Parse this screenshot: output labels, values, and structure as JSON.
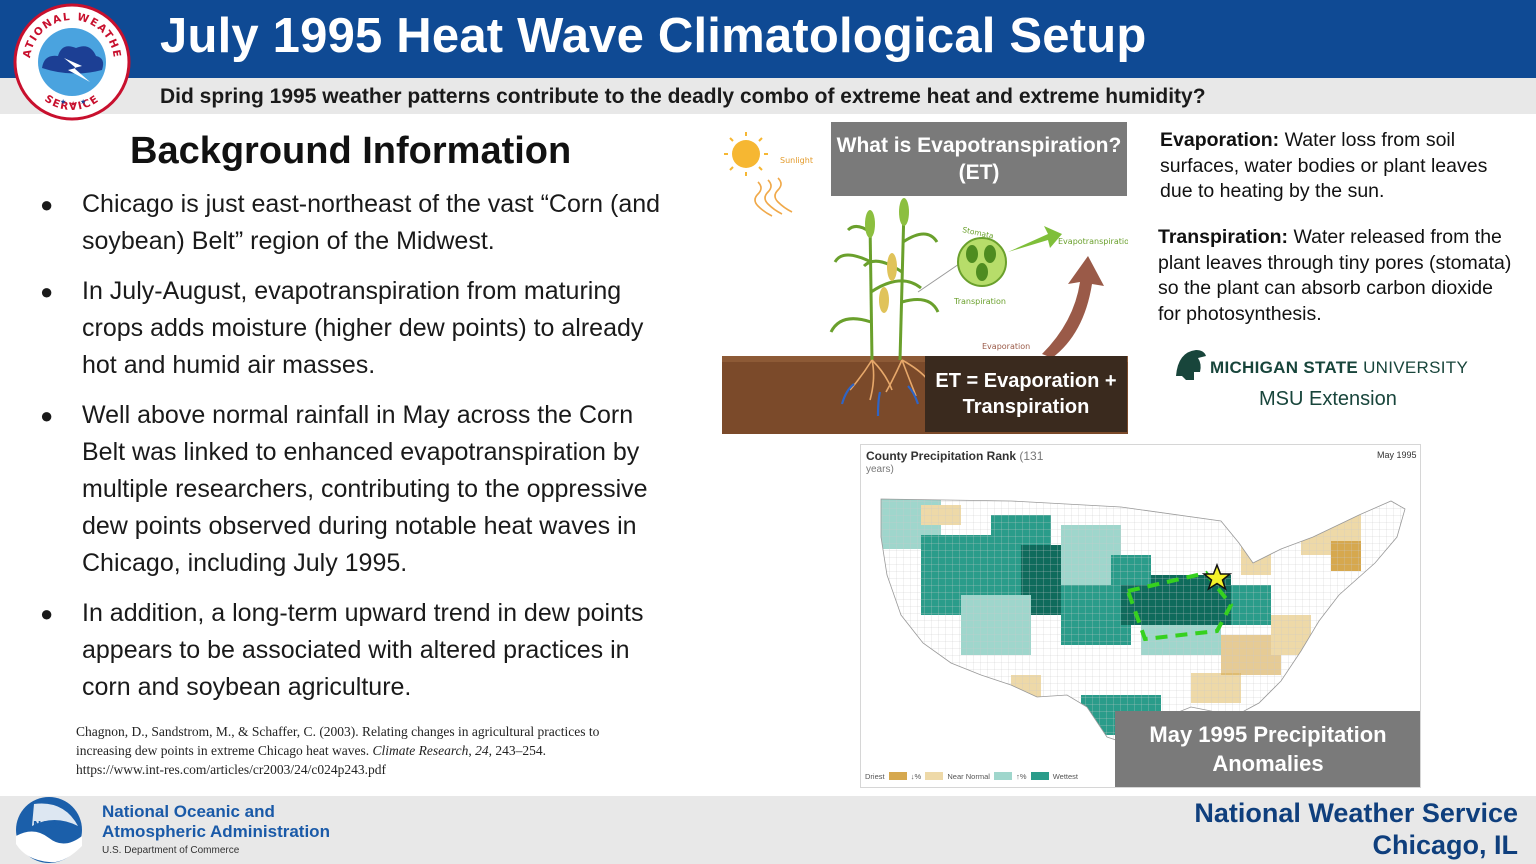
{
  "header": {
    "title": "July 1995 Heat Wave Climatological Setup",
    "subtitle": "Did spring 1995 weather patterns contribute to the deadly combo of extreme heat and extreme humidity?",
    "logo_text_top": "NATIONAL WEATHER SERVICE",
    "logo_text_bottom": "NATIONAL WEATHER SERVICE"
  },
  "background": {
    "heading": "Background Information",
    "bullet_glyph": "●",
    "bullets": [
      "Chicago is just east-northeast of the vast “Corn (and soybean) Belt” region of the Midwest.",
      "In July-August, evapotranspiration from maturing crops adds moisture (higher dew points) to already hot and humid air masses.",
      "Well above normal rainfall in May across the Corn Belt was linked to enhanced evapotranspiration by multiple researchers, contributing to the oppressive dew points observed during notable heat waves in Chicago, including July 1995.",
      "In addition, a long-term upward trend in dew points appears to be associated with altered practices in corn and soybean agriculture."
    ],
    "citation": {
      "authors": "Chagnon, D., Sandstrom, M., & Schaffer, C. (2003). Relating changes in agricultural practices to increasing dew points in extreme Chicago heat waves.",
      "journal": "Climate Research",
      "volume": "24",
      "pages": ", 243–254.",
      "url": "https://www.int-res.com/articles/cr2003/24/c024p243.pdf"
    }
  },
  "et_figure": {
    "question": "What is Evapotranspiration? (ET)",
    "equation": "ET = Evaporation + Transpiration",
    "labels": {
      "sunlight": "Sunlight",
      "stomata": "Stomata",
      "transpiration": "Transpiration",
      "evapotranspiration": "Evapotranspiration",
      "evaporation": "Evaporation"
    },
    "colors": {
      "soil": "#7b4a2a",
      "sun": "#f6b732",
      "arrow": "#9a5a48",
      "leaf": "#8cbf3f"
    }
  },
  "definitions": {
    "evaporation": {
      "term": "Evaporation:",
      "text": " Water loss from soil surfaces, water bodies or plant leaves due to heating by the sun."
    },
    "transpiration": {
      "term": "Transpiration:",
      "text": " Water released from the plant leaves through tiny pores (stomata) so the plant can absorb carbon dioxide for photosynthesis."
    }
  },
  "msu": {
    "name_bold": "MICHIGAN STATE",
    "name_light": " UNIVERSITY",
    "extension": "MSU Extension",
    "color": "#18453b"
  },
  "map": {
    "title": "County Precipitation Rank",
    "title_sub": " (131",
    "title_sub2": "years)",
    "date": "May 1995",
    "label": "May 1995 Precipitation Anomalies",
    "legend": {
      "driest": "Driest",
      "lower": "↓%",
      "normal": "Near Normal",
      "upper": "↑%",
      "wettest": "Wettest"
    },
    "colors": {
      "wettest": "#0f6b5c",
      "wet": "#2a9c8a",
      "above": "#9fd6cc",
      "normal": "#ffffff",
      "below": "#eed9a8",
      "dry": "#d6a84e",
      "driest": "#8a4a1a",
      "region_outline": "#36d11f",
      "chicago_star": "#f4f22a"
    }
  },
  "footer": {
    "noaa_line1": "National Oceanic and",
    "noaa_line2": "Atmospheric Administration",
    "noaa_line3": "U.S. Department of Commerce",
    "noaa_logo_text": "NOAA",
    "nws_line1": "National Weather Service",
    "nws_line2": "Chicago, IL"
  }
}
